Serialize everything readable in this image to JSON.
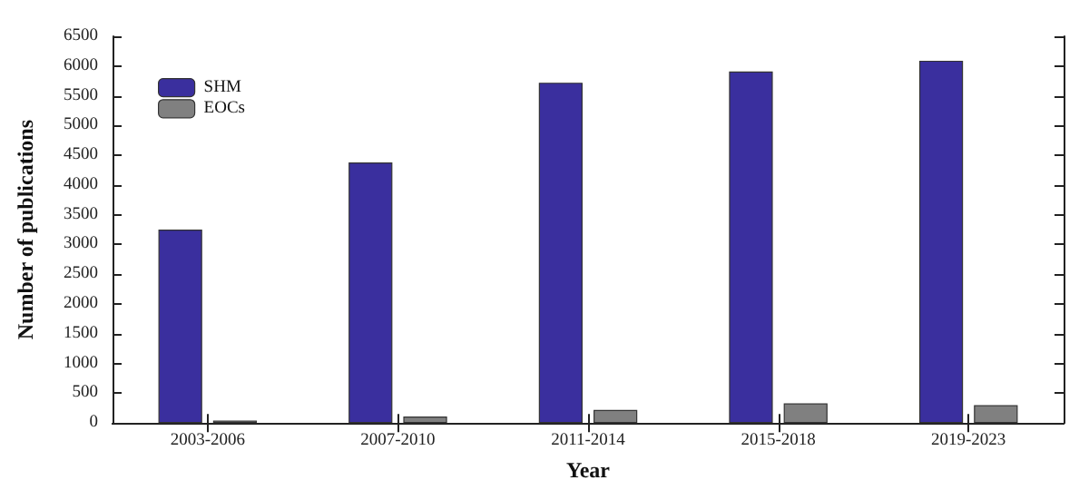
{
  "chart_data": {
    "type": "bar",
    "xlabel": "Year",
    "ylabel": "Number of publications",
    "categories": [
      "2003-2006",
      "2007-2010",
      "2011-2014",
      "2015-2018",
      "2019-2023"
    ],
    "series": [
      {
        "name": "SHM",
        "color": "#3a2f9e",
        "values": [
          3250,
          4380,
          5720,
          5910,
          6090
        ]
      },
      {
        "name": "EOCs",
        "color": "#808080",
        "values": [
          40,
          110,
          220,
          330,
          300
        ]
      }
    ],
    "ylim": [
      0,
      6500
    ],
    "yticks": [
      0,
      500,
      1000,
      1500,
      2000,
      2500,
      3000,
      3500,
      4000,
      4500,
      5000,
      5500,
      6000,
      6500
    ],
    "legend": "top left",
    "grid": false
  }
}
